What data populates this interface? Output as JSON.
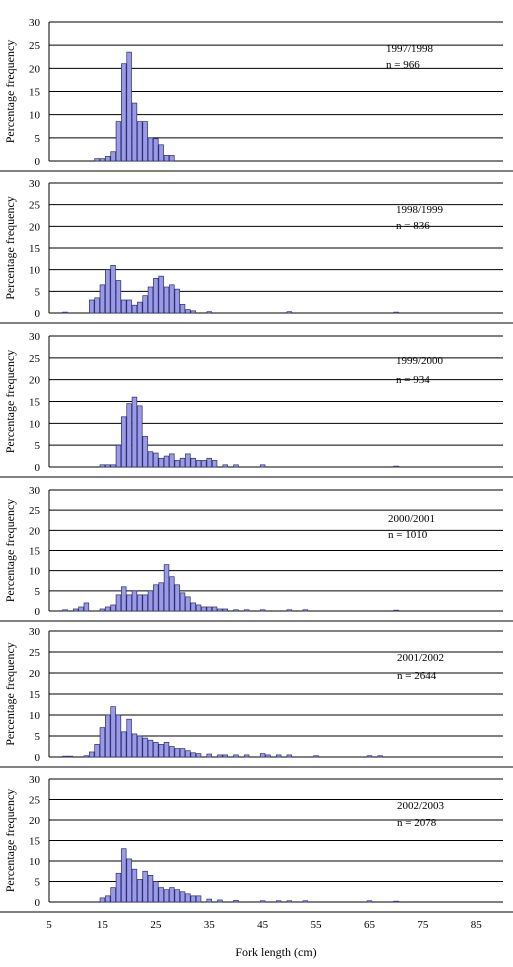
{
  "figure": {
    "xlabel": "Fork length (cm)",
    "ylabel": "Percentage frequency",
    "xticks": [
      "5",
      "15",
      "25",
      "35",
      "45",
      "55",
      "65",
      "75",
      "85"
    ]
  },
  "colors": {
    "bar_fill": "#9a9ae6",
    "bar_stroke": "#2b2b70",
    "grid": "#000000"
  },
  "chart_data": [
    {
      "type": "bar",
      "title": "1997/1998",
      "n_label": "n = 966",
      "xlabel": "Fork length (cm)",
      "ylabel": "Percentage frequency",
      "ylim": [
        0,
        30
      ],
      "yticks": [
        0,
        5,
        10,
        15,
        20,
        25,
        30
      ],
      "xlim": [
        5,
        90
      ],
      "x": [
        14,
        15,
        16,
        17,
        18,
        19,
        20,
        21,
        22,
        23,
        24,
        25,
        26,
        27,
        28
      ],
      "values": [
        0.5,
        0.5,
        1,
        2,
        8.5,
        21,
        23.5,
        12.5,
        8.5,
        8.5,
        5,
        4.8,
        3.5,
        1.2,
        1.2
      ],
      "grid": true
    },
    {
      "type": "bar",
      "title": "1998/1999",
      "n_label": "n = 836",
      "xlabel": "Fork length (cm)",
      "ylabel": "Percentage frequency",
      "ylim": [
        0,
        30
      ],
      "yticks": [
        0,
        5,
        10,
        15,
        20,
        25,
        30
      ],
      "xlim": [
        5,
        90
      ],
      "x": [
        8,
        13,
        14,
        15,
        16,
        17,
        18,
        19,
        20,
        21,
        22,
        23,
        24,
        25,
        26,
        27,
        28,
        29,
        30,
        31,
        32,
        35,
        50,
        70
      ],
      "values": [
        0.2,
        3,
        3.5,
        6.5,
        10,
        11,
        7.5,
        3,
        3,
        1.8,
        2.5,
        4,
        6,
        8,
        8.5,
        6,
        6.5,
        5.5,
        2,
        0.8,
        0.5,
        0.3,
        0.3,
        0.2
      ],
      "grid": true
    },
    {
      "type": "bar",
      "title": "1999/2000",
      "n_label": "n = 934",
      "xlabel": "Fork length (cm)",
      "ylabel": "Percentage frequency",
      "ylim": [
        0,
        30
      ],
      "yticks": [
        0,
        5,
        10,
        15,
        20,
        25,
        30
      ],
      "xlim": [
        5,
        90
      ],
      "x": [
        15,
        16,
        17,
        18,
        19,
        20,
        21,
        22,
        23,
        24,
        25,
        26,
        27,
        28,
        29,
        30,
        31,
        32,
        33,
        34,
        35,
        36,
        38,
        40,
        45,
        70
      ],
      "values": [
        0.5,
        0.5,
        0.5,
        5,
        11.5,
        14.5,
        16,
        14,
        7,
        3.5,
        3.2,
        2,
        2.5,
        3,
        1.5,
        2,
        3,
        2,
        1.5,
        1.5,
        2,
        1.5,
        0.5,
        0.5,
        0.5,
        0.2
      ],
      "grid": true
    },
    {
      "type": "bar",
      "title": "2000/2001",
      "n_label": "n = 1010",
      "xlabel": "Fork length (cm)",
      "ylabel": "Percentage frequency",
      "ylim": [
        0,
        30
      ],
      "yticks": [
        0,
        5,
        10,
        15,
        20,
        25,
        30
      ],
      "xlim": [
        5,
        90
      ],
      "x": [
        8,
        10,
        11,
        12,
        15,
        16,
        17,
        18,
        19,
        20,
        21,
        22,
        23,
        24,
        25,
        26,
        27,
        28,
        29,
        30,
        31,
        32,
        33,
        34,
        35,
        36,
        37,
        38,
        40,
        42,
        45,
        50,
        53,
        70
      ],
      "values": [
        0.3,
        0.5,
        1,
        2,
        0.5,
        1,
        1.5,
        4,
        6,
        4,
        5,
        4,
        4,
        5,
        6.5,
        7,
        11.5,
        8.5,
        6.5,
        4.5,
        3.5,
        2,
        1.5,
        1,
        1,
        1,
        0.5,
        0.5,
        0.3,
        0.3,
        0.3,
        0.3,
        0.3,
        0.2
      ],
      "grid": true
    },
    {
      "type": "bar",
      "title": "2001/2002",
      "n_label": "n = 2644",
      "xlabel": "Fork length (cm)",
      "ylabel": "Percentage frequency",
      "ylim": [
        0,
        30
      ],
      "yticks": [
        0,
        5,
        10,
        15,
        20,
        25,
        30
      ],
      "xlim": [
        5,
        90
      ],
      "x": [
        8,
        9,
        12,
        13,
        14,
        15,
        16,
        17,
        18,
        19,
        20,
        21,
        22,
        23,
        24,
        25,
        26,
        27,
        28,
        29,
        30,
        31,
        32,
        33,
        35,
        37,
        38,
        40,
        42,
        45,
        46,
        48,
        50,
        55,
        65,
        67
      ],
      "values": [
        0.2,
        0.2,
        0.3,
        1.2,
        3,
        7,
        10,
        12,
        10,
        6,
        9,
        5.5,
        5,
        4.5,
        4,
        3.5,
        3,
        3.5,
        2.5,
        2,
        2,
        1.5,
        1,
        0.8,
        0.7,
        0.5,
        0.5,
        0.5,
        0.5,
        0.8,
        0.5,
        0.5,
        0.5,
        0.3,
        0.3,
        0.3
      ],
      "grid": true
    },
    {
      "type": "bar",
      "title": "2002/2003",
      "n_label": "n = 2078",
      "xlabel": "Fork length (cm)",
      "ylabel": "Percentage frequency",
      "ylim": [
        0,
        30
      ],
      "yticks": [
        0,
        5,
        10,
        15,
        20,
        25,
        30
      ],
      "xlim": [
        5,
        90
      ],
      "x": [
        15,
        16,
        17,
        18,
        19,
        20,
        21,
        22,
        23,
        24,
        25,
        26,
        27,
        28,
        29,
        30,
        31,
        32,
        33,
        35,
        37,
        40,
        45,
        48,
        50,
        53,
        65,
        70
      ],
      "values": [
        1,
        1.5,
        3.5,
        7,
        13,
        10.5,
        8,
        5.5,
        7.5,
        6.5,
        5,
        3.5,
        3,
        3.5,
        3,
        2.5,
        2,
        1.5,
        1.5,
        0.7,
        0.5,
        0.4,
        0.3,
        0.3,
        0.3,
        0.3,
        0.3,
        0.2
      ],
      "grid": true
    }
  ]
}
